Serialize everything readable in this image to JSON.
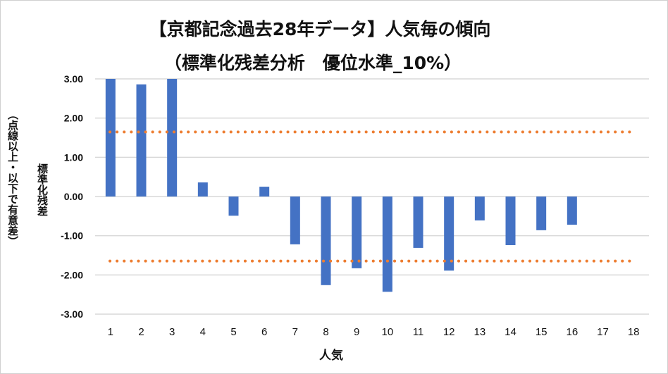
{
  "chart_data": {
    "type": "bar",
    "title": "【京都記念過去28年データ】人気毎の傾向",
    "subtitle": "（標準化残差分析　優位水準_10%）",
    "xlabel": "人気",
    "ylabel": "標準化残差",
    "ylabel_note": "（点線以上・以下で有意差）",
    "categories": [
      "1",
      "2",
      "3",
      "4",
      "5",
      "6",
      "7",
      "8",
      "9",
      "10",
      "11",
      "12",
      "13",
      "14",
      "15",
      "16",
      "17",
      "18"
    ],
    "values": [
      3.0,
      2.86,
      3.0,
      0.36,
      -0.49,
      0.25,
      -1.22,
      -2.26,
      -1.83,
      -2.43,
      -1.31,
      -1.89,
      -0.61,
      -1.24,
      -0.86,
      -0.72,
      0,
      0
    ],
    "yticks": [
      "3.00",
      "2.00",
      "1.00",
      "0.00",
      "-1.00",
      "-2.00",
      "-3.00"
    ],
    "ylim": [
      -3,
      3
    ],
    "reference_lines": [
      1.645,
      -1.645
    ],
    "grid": true,
    "colors": {
      "bar": "#4472C4",
      "reference": "#ED7D31",
      "grid": "#D9D9D9"
    }
  }
}
